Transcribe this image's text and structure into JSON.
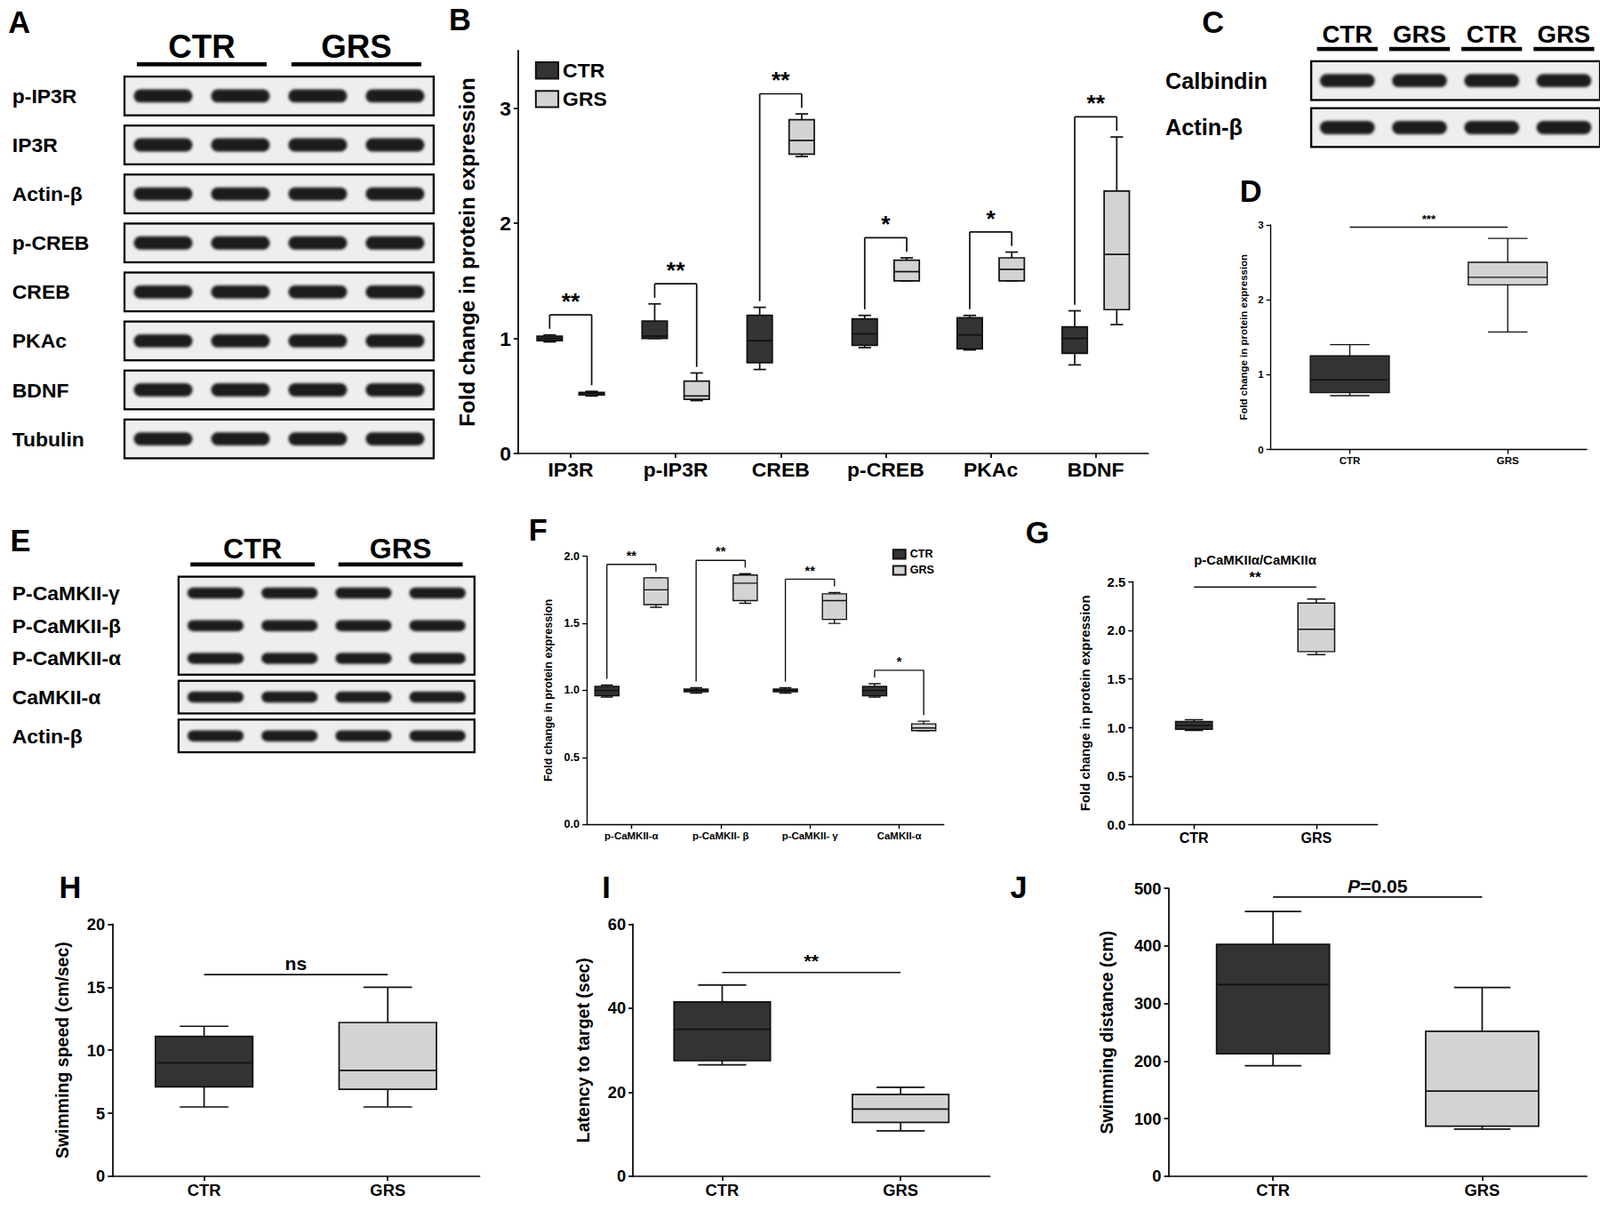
{
  "chart_data": [
    {
      "panel": "B",
      "type": "boxplot",
      "y_label": "Fold change in protein expression",
      "categories": [
        "IP3R",
        "p-IP3R",
        "CREB",
        "p-CREB",
        "PKAc",
        "BDNF"
      ],
      "series": [
        {
          "name": "CTR",
          "color": "#333333",
          "values": [
            [
              0.97,
              0.98,
              1.0,
              1.02,
              1.03
            ],
            [
              1.0,
              1.0,
              1.02,
              1.15,
              1.3
            ],
            [
              0.73,
              0.79,
              0.98,
              1.2,
              1.27
            ],
            [
              0.92,
              0.94,
              1.04,
              1.17,
              1.2
            ],
            [
              0.9,
              0.91,
              1.03,
              1.18,
              1.2
            ],
            [
              0.77,
              0.87,
              1.0,
              1.1,
              1.24
            ]
          ]
        },
        {
          "name": "GRS",
          "color": "#d3d3d3",
          "values": [
            [
              0.5,
              0.51,
              0.52,
              0.53,
              0.54
            ],
            [
              0.46,
              0.47,
              0.5,
              0.63,
              0.7
            ],
            [
              2.58,
              2.6,
              2.72,
              2.9,
              2.95
            ],
            [
              1.5,
              1.5,
              1.58,
              1.68,
              1.7
            ],
            [
              1.5,
              1.5,
              1.6,
              1.7,
              1.75
            ],
            [
              1.12,
              1.25,
              1.73,
              2.28,
              2.75
            ]
          ]
        }
      ],
      "annotations": [
        "**",
        "**",
        "**",
        "*",
        "*",
        "**"
      ],
      "ylim": [
        0,
        3.5
      ],
      "yticks": [
        0,
        1,
        2,
        3
      ],
      "grid": false,
      "legend": "top-left"
    },
    {
      "panel": "D",
      "type": "boxplot",
      "y_label": "Fold change in protein expression",
      "categories": [
        "CTR",
        "GRS"
      ],
      "values": [
        [
          0.72,
          0.76,
          0.93,
          1.25,
          1.4
        ],
        [
          1.57,
          2.2,
          2.3,
          2.5,
          2.82
        ]
      ],
      "colors": [
        "#333333",
        "#d3d3d3"
      ],
      "annotation": "***",
      "ylim": [
        0,
        3
      ],
      "yticks": [
        0,
        1,
        2,
        3
      ],
      "grid": false
    },
    {
      "panel": "F",
      "type": "boxplot",
      "y_label": "Fold change in protein expression",
      "categories": [
        "p-CaMKII-α",
        "p-CaMKII- β",
        "p-CaMKII- γ",
        "CaMKII-α"
      ],
      "series": [
        {
          "name": "CTR",
          "color": "#333333",
          "values": [
            [
              0.95,
              0.96,
              1.0,
              1.03,
              1.04
            ],
            [
              0.98,
              0.99,
              1.0,
              1.01,
              1.02
            ],
            [
              0.98,
              0.99,
              1.0,
              1.01,
              1.02
            ],
            [
              0.95,
              0.96,
              1.0,
              1.03,
              1.05
            ]
          ]
        },
        {
          "name": "GRS",
          "color": "#d3d3d3",
          "values": [
            [
              1.62,
              1.64,
              1.75,
              1.84,
              1.84
            ],
            [
              1.65,
              1.67,
              1.8,
              1.86,
              1.87
            ],
            [
              1.5,
              1.53,
              1.67,
              1.72,
              1.73
            ],
            [
              0.7,
              0.7,
              0.72,
              0.75,
              0.77
            ]
          ]
        }
      ],
      "annotations": [
        "**",
        "**",
        "**",
        "*"
      ],
      "ylim": [
        0,
        2
      ],
      "yticks": [
        {
          "value": 0,
          "label": "0.0"
        },
        0.5,
        {
          "value": 1,
          "label": "1.0"
        },
        1.5,
        {
          "value": 2,
          "label": "2.0"
        }
      ],
      "grid": false,
      "legend": "top-right"
    },
    {
      "panel": "G",
      "type": "boxplot",
      "title": "p-CaMKIIα/CaMKIIα",
      "y_label": "Fold change in protein expression",
      "categories": [
        "CTR",
        "GRS"
      ],
      "values": [
        [
          0.97,
          0.98,
          1.02,
          1.06,
          1.08
        ],
        [
          1.75,
          1.78,
          2.01,
          2.28,
          2.32
        ]
      ],
      "colors": [
        "#333333",
        "#d3d3d3"
      ],
      "annotation": "**",
      "ylim": [
        0,
        2.5
      ],
      "yticks": [
        {
          "value": 0,
          "label": "0.0"
        },
        0.5,
        {
          "value": 1,
          "label": "1.0"
        },
        1.5,
        {
          "value": 2,
          "label": "2.0"
        },
        2.5
      ],
      "grid": false
    },
    {
      "panel": "H",
      "type": "boxplot",
      "y_label": "Swimming speed (cm/sec)",
      "categories": [
        "CTR",
        "GRS"
      ],
      "values": [
        [
          5.5,
          7.1,
          9.0,
          11.1,
          11.9
        ],
        [
          5.5,
          6.9,
          8.4,
          12.2,
          15
        ]
      ],
      "colors": [
        "#333333",
        "#d3d3d3"
      ],
      "annotation": "ns",
      "ylim": [
        0,
        20
      ],
      "yticks": [
        0,
        5,
        10,
        15,
        20
      ],
      "grid": false
    },
    {
      "panel": "I",
      "type": "boxplot",
      "y_label": "Latency to target (sec)",
      "categories": [
        "CTR",
        "GRS"
      ],
      "values": [
        [
          26.5,
          27.5,
          35,
          41.5,
          45.5
        ],
        [
          10.8,
          12.8,
          16,
          19.5,
          21.2
        ]
      ],
      "colors": [
        "#333333",
        "#d3d3d3"
      ],
      "annotation": "**",
      "ylim": [
        0,
        60
      ],
      "yticks": [
        0,
        20,
        40,
        60
      ],
      "grid": false
    },
    {
      "panel": "J",
      "type": "boxplot",
      "y_label": "Swimming distance (cm)",
      "categories": [
        "CTR",
        "GRS"
      ],
      "values": [
        [
          192,
          213,
          333,
          403,
          460
        ],
        [
          82,
          87,
          148,
          252,
          328
        ]
      ],
      "colors": [
        "#333333",
        "#d3d3d3"
      ],
      "annotation": "P=0.05",
      "ylim": [
        0,
        500
      ],
      "yticks": [
        0,
        100,
        200,
        300,
        400,
        500
      ],
      "grid": false
    }
  ],
  "blots": [
    {
      "panel": "A",
      "columns": [
        "CTR",
        "GRS"
      ],
      "lanes_per_column": 2,
      "rows": [
        [
          "p-IP3R"
        ],
        [
          "IP3R"
        ],
        [
          "Actin-β"
        ],
        [
          "p-CREB"
        ],
        [
          "CREB"
        ],
        [
          "PKAc"
        ],
        [
          "BDNF"
        ],
        [
          "Tubulin"
        ]
      ]
    },
    {
      "panel": "C",
      "columns": [
        "CTR",
        "GRS",
        "CTR",
        "GRS"
      ],
      "lanes_per_column": 1,
      "rows": [
        [
          "Calbindin"
        ],
        [
          "Actin-β"
        ]
      ]
    },
    {
      "panel": "E",
      "columns": [
        "CTR",
        "GRS"
      ],
      "lanes_per_column": 2,
      "rows": [
        [
          "P-CaMKII-γ",
          "P-CaMKII-β",
          "P-CaMKII-α"
        ],
        [
          "CaMKII-α"
        ],
        [
          "Actin-β"
        ]
      ]
    }
  ]
}
